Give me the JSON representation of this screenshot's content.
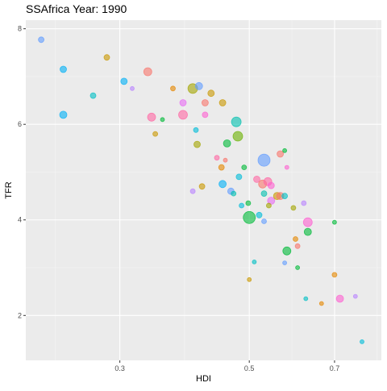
{
  "chart_data": {
    "type": "scatter",
    "title": "SSAfrica Year: 1990",
    "xlabel": "HDI",
    "ylabel": "TFR",
    "x_scale": "log",
    "xlim": [
      0.207,
      0.842
    ],
    "ylim": [
      1.06,
      8.18
    ],
    "x_ticks": [
      0.3,
      0.5,
      0.7
    ],
    "x_tick_labels": [
      "0.3",
      "0.5",
      "0.7"
    ],
    "y_ticks": [
      2,
      4,
      6,
      8
    ],
    "y_tick_labels": [
      "2",
      "4",
      "6",
      "8"
    ],
    "grid": true,
    "legend": "none",
    "colors": {
      "panel_background": "#ebebeb",
      "grid_major": "#ffffff",
      "grid_minor": "#f5f5f5",
      "palette": [
        "#F8766D",
        "#E58700",
        "#C99800",
        "#A3A500",
        "#6BB100",
        "#00BA38",
        "#00BF7D",
        "#00C0AF",
        "#00BCD8",
        "#00B0F6",
        "#619CFF",
        "#B983FF",
        "#E76BF3",
        "#FD61D1",
        "#FF67A4"
      ]
    },
    "points": [
      {
        "x": 0.22,
        "y": 7.77,
        "size": 6,
        "color": "#619CFF"
      },
      {
        "x": 0.24,
        "y": 7.15,
        "size": 7,
        "color": "#00B0F6"
      },
      {
        "x": 0.24,
        "y": 6.2,
        "size": 8,
        "color": "#00B0F6"
      },
      {
        "x": 0.285,
        "y": 7.4,
        "size": 6,
        "color": "#C99800"
      },
      {
        "x": 0.27,
        "y": 6.6,
        "size": 6,
        "color": "#00BFC4"
      },
      {
        "x": 0.305,
        "y": 6.9,
        "size": 7,
        "color": "#00B0F6"
      },
      {
        "x": 0.315,
        "y": 6.75,
        "size": 4,
        "color": "#B983FF"
      },
      {
        "x": 0.335,
        "y": 7.1,
        "size": 9,
        "color": "#F8766D"
      },
      {
        "x": 0.34,
        "y": 6.15,
        "size": 9,
        "color": "#FF67A4"
      },
      {
        "x": 0.345,
        "y": 5.8,
        "size": 5,
        "color": "#C99800"
      },
      {
        "x": 0.355,
        "y": 6.1,
        "size": 4,
        "color": "#00BA38"
      },
      {
        "x": 0.37,
        "y": 6.75,
        "size": 5,
        "color": "#E58700"
      },
      {
        "x": 0.385,
        "y": 6.45,
        "size": 7,
        "color": "#E76BF3"
      },
      {
        "x": 0.385,
        "y": 6.2,
        "size": 10,
        "color": "#FF67A4"
      },
      {
        "x": 0.4,
        "y": 6.75,
        "size": 11,
        "color": "#A3A500"
      },
      {
        "x": 0.41,
        "y": 6.8,
        "size": 8,
        "color": "#619CFF"
      },
      {
        "x": 0.405,
        "y": 5.88,
        "size": 5,
        "color": "#00BCD8"
      },
      {
        "x": 0.407,
        "y": 5.58,
        "size": 7,
        "color": "#A3A500"
      },
      {
        "x": 0.42,
        "y": 6.45,
        "size": 7,
        "color": "#F8766D"
      },
      {
        "x": 0.42,
        "y": 6.2,
        "size": 6,
        "color": "#FD61D1"
      },
      {
        "x": 0.43,
        "y": 6.65,
        "size": 7,
        "color": "#C99800"
      },
      {
        "x": 0.45,
        "y": 6.45,
        "size": 7,
        "color": "#C99800"
      },
      {
        "x": 0.458,
        "y": 5.6,
        "size": 8,
        "color": "#00BA38"
      },
      {
        "x": 0.475,
        "y": 6.05,
        "size": 11,
        "color": "#00C0AF"
      },
      {
        "x": 0.478,
        "y": 5.75,
        "size": 11,
        "color": "#6BB100"
      },
      {
        "x": 0.44,
        "y": 5.3,
        "size": 5,
        "color": "#FF67A4"
      },
      {
        "x": 0.448,
        "y": 5.1,
        "size": 6,
        "color": "#E58700"
      },
      {
        "x": 0.455,
        "y": 5.25,
        "size": 4,
        "color": "#F8766D"
      },
      {
        "x": 0.53,
        "y": 5.25,
        "size": 14,
        "color": "#619CFF"
      },
      {
        "x": 0.565,
        "y": 5.38,
        "size": 7,
        "color": "#F8766D"
      },
      {
        "x": 0.575,
        "y": 5.45,
        "size": 4,
        "color": "#00BA38"
      },
      {
        "x": 0.58,
        "y": 5.1,
        "size": 4,
        "color": "#FD61D1"
      },
      {
        "x": 0.45,
        "y": 4.75,
        "size": 8,
        "color": "#00B0F6"
      },
      {
        "x": 0.465,
        "y": 4.6,
        "size": 7,
        "color": "#619CFF"
      },
      {
        "x": 0.415,
        "y": 4.7,
        "size": 6,
        "color": "#C99800"
      },
      {
        "x": 0.4,
        "y": 4.6,
        "size": 5,
        "color": "#B983FF"
      },
      {
        "x": 0.48,
        "y": 4.9,
        "size": 6,
        "color": "#00BCD8"
      },
      {
        "x": 0.515,
        "y": 4.85,
        "size": 7,
        "color": "#FF67A4"
      },
      {
        "x": 0.527,
        "y": 4.75,
        "size": 9,
        "color": "#F8766D"
      },
      {
        "x": 0.538,
        "y": 4.8,
        "size": 9,
        "color": "#FF67A4"
      },
      {
        "x": 0.545,
        "y": 4.72,
        "size": 7,
        "color": "#FD61D1"
      },
      {
        "x": 0.53,
        "y": 4.55,
        "size": 6,
        "color": "#00C0AF"
      },
      {
        "x": 0.545,
        "y": 4.4,
        "size": 8,
        "color": "#E76BF3"
      },
      {
        "x": 0.558,
        "y": 4.5,
        "size": 8,
        "color": "#C99800"
      },
      {
        "x": 0.565,
        "y": 4.5,
        "size": 8,
        "color": "#F8766D"
      },
      {
        "x": 0.575,
        "y": 4.5,
        "size": 6,
        "color": "#00BFC4"
      },
      {
        "x": 0.498,
        "y": 4.35,
        "size": 5,
        "color": "#00BA38"
      },
      {
        "x": 0.485,
        "y": 4.3,
        "size": 5,
        "color": "#00BCD8"
      },
      {
        "x": 0.5,
        "y": 4.05,
        "size": 14,
        "color": "#00BA38"
      },
      {
        "x": 0.52,
        "y": 4.1,
        "size": 6,
        "color": "#00BCD8"
      },
      {
        "x": 0.53,
        "y": 3.97,
        "size": 5,
        "color": "#619CFF"
      },
      {
        "x": 0.54,
        "y": 4.3,
        "size": 5,
        "color": "#A3A500"
      },
      {
        "x": 0.595,
        "y": 4.25,
        "size": 5,
        "color": "#A3A500"
      },
      {
        "x": 0.62,
        "y": 4.35,
        "size": 5,
        "color": "#B983FF"
      },
      {
        "x": 0.63,
        "y": 3.95,
        "size": 10,
        "color": "#FD61D1"
      },
      {
        "x": 0.63,
        "y": 3.75,
        "size": 8,
        "color": "#00BA38"
      },
      {
        "x": 0.6,
        "y": 3.6,
        "size": 5,
        "color": "#E58700"
      },
      {
        "x": 0.605,
        "y": 3.45,
        "size": 5,
        "color": "#F8766D"
      },
      {
        "x": 0.58,
        "y": 3.35,
        "size": 9,
        "color": "#00BA38"
      },
      {
        "x": 0.51,
        "y": 3.12,
        "size": 4,
        "color": "#00BFC4"
      },
      {
        "x": 0.575,
        "y": 3.1,
        "size": 4,
        "color": "#619CFF"
      },
      {
        "x": 0.605,
        "y": 3.0,
        "size": 4,
        "color": "#00BA38"
      },
      {
        "x": 0.7,
        "y": 3.95,
        "size": 4,
        "color": "#00BA38"
      },
      {
        "x": 0.7,
        "y": 2.85,
        "size": 5,
        "color": "#E58700"
      },
      {
        "x": 0.5,
        "y": 2.75,
        "size": 4,
        "color": "#C99800"
      },
      {
        "x": 0.625,
        "y": 2.35,
        "size": 4,
        "color": "#00BFC4"
      },
      {
        "x": 0.665,
        "y": 2.25,
        "size": 4,
        "color": "#E58700"
      },
      {
        "x": 0.715,
        "y": 2.35,
        "size": 8,
        "color": "#FD61D1"
      },
      {
        "x": 0.76,
        "y": 2.4,
        "size": 4,
        "color": "#B983FF"
      },
      {
        "x": 0.78,
        "y": 1.45,
        "size": 4,
        "color": "#00BCD8"
      },
      {
        "x": 0.47,
        "y": 4.55,
        "size": 5,
        "color": "#00C0AF"
      },
      {
        "x": 0.49,
        "y": 5.1,
        "size": 5,
        "color": "#00BA38"
      }
    ]
  }
}
